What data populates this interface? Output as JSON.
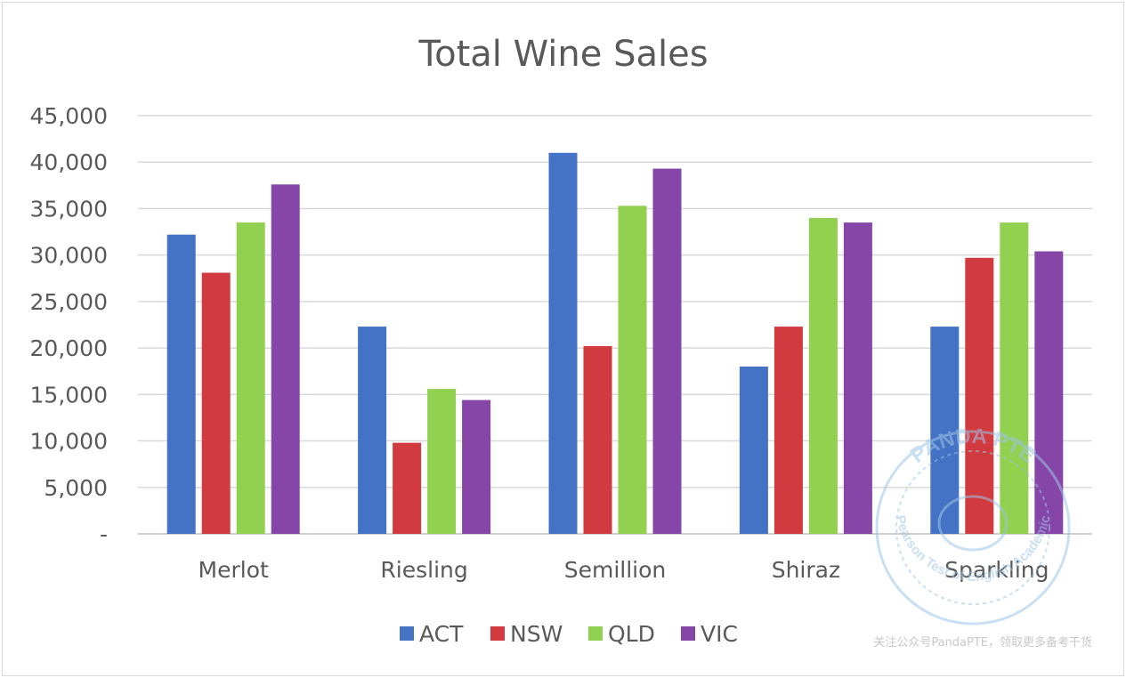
{
  "chart_data": {
    "type": "bar",
    "title": "Total Wine Sales",
    "categories": [
      "Merlot",
      "Riesling",
      "Semillion",
      "Shiraz",
      "Sparkling"
    ],
    "series": [
      {
        "name": "ACT",
        "color": "#4472c4",
        "values": [
          32200,
          22300,
          41000,
          18000,
          22300
        ]
      },
      {
        "name": "NSW",
        "color": "#d13b3f",
        "values": [
          28100,
          9800,
          20200,
          22300,
          29700
        ]
      },
      {
        "name": "QLD",
        "color": "#92d050",
        "values": [
          33500,
          15600,
          35300,
          34000,
          33500
        ]
      },
      {
        "name": "VIC",
        "color": "#8646a8",
        "values": [
          37600,
          14400,
          39300,
          33500,
          30400
        ]
      }
    ],
    "yticks": [
      "-",
      "5,000",
      "10,000",
      "15,000",
      "20,000",
      "25,000",
      "30,000",
      "35,000",
      "40,000",
      "45,000"
    ],
    "ylim": [
      0,
      45000
    ],
    "ystep": 5000,
    "xlabel": "",
    "ylabel": "",
    "grid": true,
    "legend_position": "bottom"
  },
  "watermark": {
    "stamp_top": "PANDA PTE",
    "stamp_bottom": "Pearson Test of English Academic",
    "note": "关注公众号PandaPTE，领取更多备考干货"
  }
}
